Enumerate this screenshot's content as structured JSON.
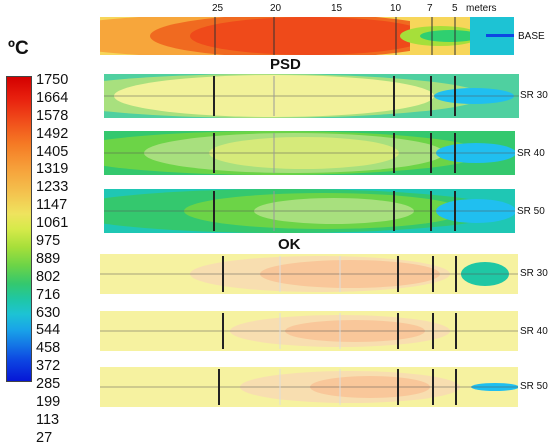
{
  "unit": "ºC",
  "legend_ticks": [
    "1750",
    "1664",
    "1578",
    "1492",
    "1405",
    "1319",
    "1233",
    "1147",
    "1061",
    "975",
    "889",
    "802",
    "716",
    "630",
    "544",
    "458",
    "372",
    "285",
    "199",
    "113",
    "27"
  ],
  "scale": {
    "d25": "25",
    "d20": "20",
    "d15": "15",
    "d10": "10",
    "d7": "7",
    "d5": "5",
    "unit": "meters"
  },
  "sections": {
    "psd": "PSD",
    "ok": "OK"
  },
  "rows": {
    "base": "BASE",
    "psd30": "SR 30",
    "psd40": "SR 40",
    "psd50": "SR 50",
    "ok30": "SR 30",
    "ok40": "SR 40",
    "ok50": "SR 50"
  },
  "colors": {
    "base_outer": "#f7d65a",
    "base_mid": "#f7a63b",
    "base_core": "#f04a1a",
    "base_cool": "#2fcf70",
    "psd_outer": "#4fd0a0",
    "psd_mid": "#a8e07e",
    "psd_core": "#f2f29a",
    "ok_outer": "#f6f2a0",
    "ok_core": "#f9c79a",
    "cool_blue": "#20bff0"
  }
}
